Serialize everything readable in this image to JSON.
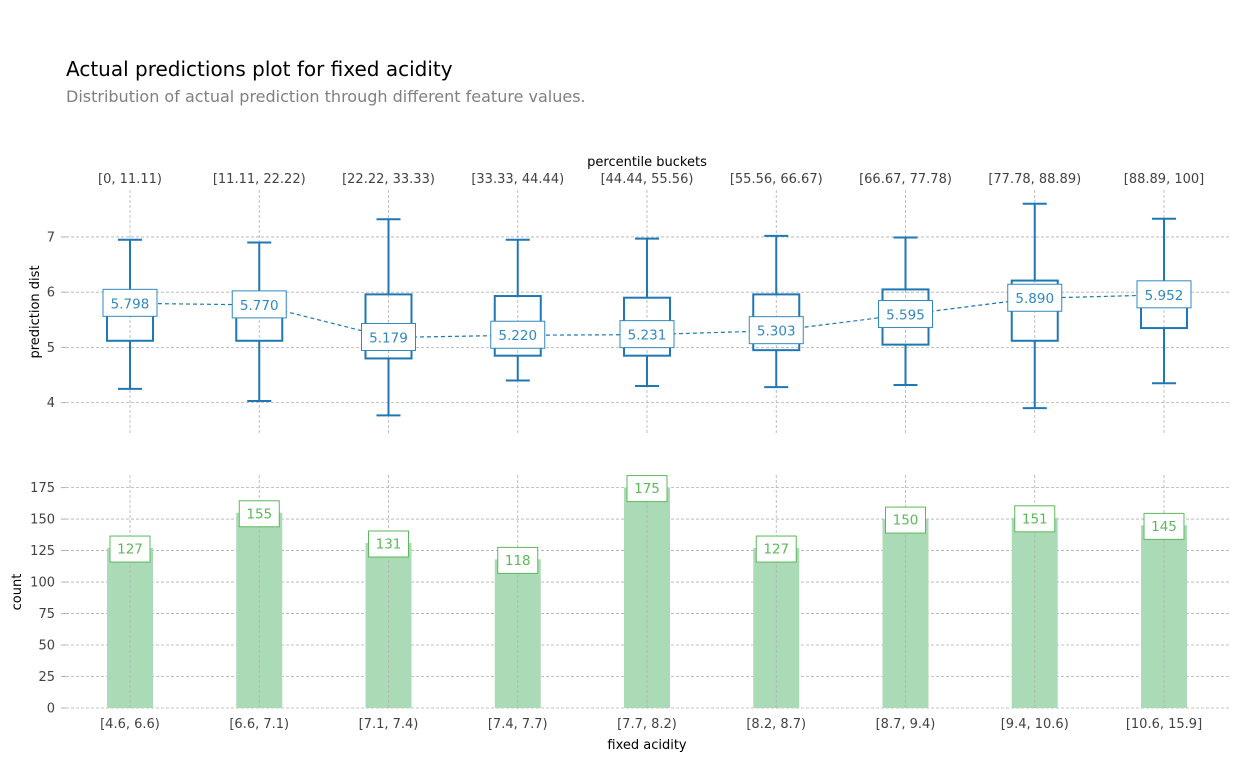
{
  "title": "Actual predictions plot for fixed acidity",
  "subtitle": "Distribution of actual prediction through different feature values.",
  "colors": {
    "box": "#1f77b4",
    "box_label": "#3288bd",
    "bar": "#abdbb6",
    "bar_label": "#5cb85c",
    "grid": "#b0b0b0",
    "tick_text": "#424242"
  },
  "chart_data": [
    {
      "type": "box",
      "title": "",
      "top_axis_title": "percentile buckets",
      "ylabel": "prediction dist",
      "ylim": [
        3.45,
        7.85
      ],
      "yticks": [
        4,
        5,
        6,
        7
      ],
      "grid": true,
      "percentile_buckets": [
        "[0, 11.11)",
        "[11.11, 22.22)",
        "[22.22, 33.33)",
        "[33.33, 44.44)",
        "[44.44, 55.56)",
        "[55.56, 66.67)",
        "[66.67, 77.78)",
        "[77.78, 88.89)",
        "[88.89, 100]"
      ],
      "boxes": [
        {
          "whisker_low": 4.25,
          "q1": 5.12,
          "median": 5.75,
          "q3": 6.0,
          "whisker_high": 6.95,
          "mean": 5.798,
          "mean_label": "5.798"
        },
        {
          "whisker_low": 4.03,
          "q1": 5.12,
          "median": 5.72,
          "q3": 5.98,
          "whisker_high": 6.9,
          "mean": 5.77,
          "mean_label": "5.770"
        },
        {
          "whisker_low": 3.77,
          "q1": 4.8,
          "median": 5.05,
          "q3": 5.96,
          "whisker_high": 7.32,
          "mean": 5.179,
          "mean_label": "5.179"
        },
        {
          "whisker_low": 4.4,
          "q1": 4.85,
          "median": 5.08,
          "q3": 5.93,
          "whisker_high": 6.95,
          "mean": 5.22,
          "mean_label": "5.220"
        },
        {
          "whisker_low": 4.3,
          "q1": 4.85,
          "median": 5.1,
          "q3": 5.9,
          "whisker_high": 6.97,
          "mean": 5.231,
          "mean_label": "5.231"
        },
        {
          "whisker_low": 4.28,
          "q1": 4.95,
          "median": 5.2,
          "q3": 5.96,
          "whisker_high": 7.02,
          "mean": 5.303,
          "mean_label": "5.303"
        },
        {
          "whisker_low": 4.32,
          "q1": 5.05,
          "median": 5.4,
          "q3": 6.05,
          "whisker_high": 6.99,
          "mean": 5.595,
          "mean_label": "5.595"
        },
        {
          "whisker_low": 3.9,
          "q1": 5.12,
          "median": 5.85,
          "q3": 6.21,
          "whisker_high": 7.6,
          "mean": 5.89,
          "mean_label": "5.890"
        },
        {
          "whisker_low": 4.35,
          "q1": 5.35,
          "median": 6.05,
          "q3": 6.15,
          "whisker_high": 7.33,
          "mean": 5.952,
          "mean_label": "5.952"
        }
      ]
    },
    {
      "type": "bar",
      "title": "",
      "xlabel": "fixed acidity",
      "ylabel": "count",
      "ylim": [
        0,
        185
      ],
      "yticks": [
        0,
        25,
        50,
        75,
        100,
        125,
        150,
        175
      ],
      "grid": true,
      "categories": [
        "[4.6, 6.6)",
        "[6.6, 7.1)",
        "[7.1, 7.4)",
        "[7.4, 7.7)",
        "[7.7, 8.2)",
        "[8.2, 8.7)",
        "[8.7, 9.4)",
        "[9.4, 10.6)",
        "[10.6, 15.9]"
      ],
      "values": [
        127,
        155,
        131,
        118,
        175,
        127,
        150,
        151,
        145
      ]
    }
  ]
}
